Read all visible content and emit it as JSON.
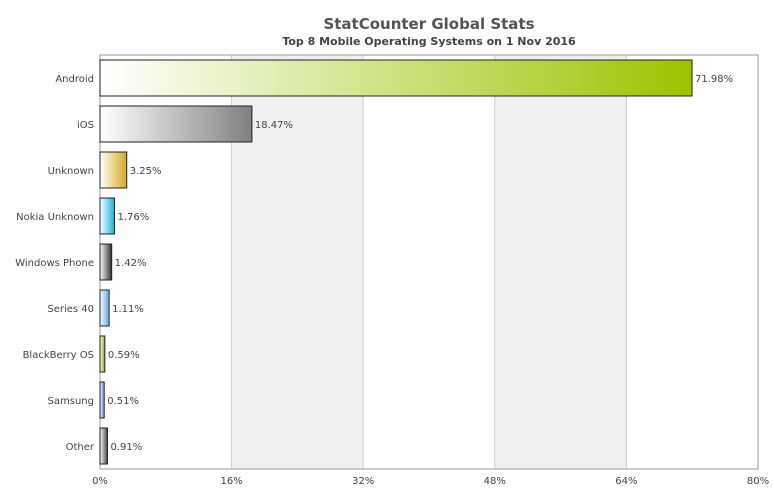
{
  "chart_data": {
    "type": "bar",
    "orientation": "horizontal",
    "title": "StatCounter Global Stats",
    "subtitle": "Top 8 Mobile Operating Systems on 1 Nov 2016",
    "categories": [
      "Android",
      "iOS",
      "Unknown",
      "Nokia Unknown",
      "Windows Phone",
      "Series 40",
      "BlackBerry OS",
      "Samsung",
      "Other"
    ],
    "values": [
      71.98,
      18.47,
      3.25,
      1.76,
      1.42,
      1.11,
      0.59,
      0.51,
      0.91
    ],
    "value_labels": [
      "71.98%",
      "18.47%",
      "3.25%",
      "1.76%",
      "1.42%",
      "1.11%",
      "0.59%",
      "0.51%",
      "0.91%"
    ],
    "bar_colors": [
      "#99c400",
      "#808080",
      "#d4aa20",
      "#1ab0d8",
      "#333333",
      "#5aa6e6",
      "#88aa22",
      "#6688cc",
      "#444444"
    ],
    "xlim": [
      0,
      80
    ],
    "x_ticks": [
      0,
      16,
      32,
      48,
      64,
      80
    ],
    "x_tick_labels": [
      "0%",
      "16%",
      "32%",
      "48%",
      "64%",
      "80%"
    ],
    "grid": "alternating vertical bands",
    "legend": "none"
  }
}
